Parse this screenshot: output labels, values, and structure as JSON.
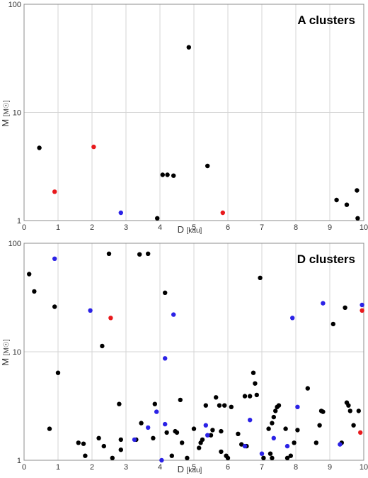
{
  "colors": {
    "black": "#000000",
    "red": "#e8191c",
    "blue": "#2b22e6",
    "grid": "#d4d4d4"
  },
  "chart_data": [
    {
      "type": "scatter",
      "title": "A clusters",
      "xlabel": "D",
      "xlabel_unit": "[kau]",
      "ylabel": "M",
      "ylabel_unit": "[M☉]",
      "xlim": [
        0,
        10
      ],
      "ylim": [
        1,
        100
      ],
      "yscale": "log",
      "grid": true,
      "x_ticks": [
        "0",
        "1",
        "2",
        "3",
        "4",
        "5",
        "6",
        "7",
        "8",
        "9",
        "10"
      ],
      "y_ticks": [
        "1",
        "10",
        "100"
      ],
      "series": [
        {
          "color": "black",
          "points": [
            [
              0.45,
              4.7
            ],
            [
              3.92,
              1.05
            ],
            [
              4.08,
              2.65
            ],
            [
              4.22,
              2.65
            ],
            [
              4.4,
              2.6
            ],
            [
              4.85,
              40
            ],
            [
              5.4,
              3.2
            ],
            [
              9.2,
              1.55
            ],
            [
              9.5,
              1.4
            ],
            [
              9.8,
              1.9
            ],
            [
              9.82,
              1.05
            ]
          ]
        },
        {
          "color": "red",
          "points": [
            [
              0.9,
              1.85
            ],
            [
              2.05,
              4.8
            ],
            [
              5.85,
              1.18
            ]
          ]
        },
        {
          "color": "blue",
          "points": [
            [
              2.85,
              1.18
            ]
          ]
        }
      ]
    },
    {
      "type": "scatter",
      "title": "D clusters",
      "xlabel": "D",
      "xlabel_unit": "[kau]",
      "ylabel": "M",
      "ylabel_unit": "[M☉]",
      "xlim": [
        0,
        10
      ],
      "ylim": [
        1,
        100
      ],
      "yscale": "log",
      "grid": true,
      "x_ticks": [
        "0",
        "1",
        "2",
        "3",
        "4",
        "5",
        "6",
        "7",
        "8",
        "9",
        "10"
      ],
      "y_ticks": [
        "1",
        "10",
        "100"
      ],
      "series": [
        {
          "color": "black",
          "points": [
            [
              0.15,
              52
            ],
            [
              0.3,
              36
            ],
            [
              0.9,
              26
            ],
            [
              1.0,
              6.4
            ],
            [
              0.75,
              1.95
            ],
            [
              1.6,
              1.45
            ],
            [
              1.75,
              1.42
            ],
            [
              1.8,
              1.1
            ],
            [
              2.2,
              1.6
            ],
            [
              2.3,
              11.3
            ],
            [
              2.35,
              1.35
            ],
            [
              2.5,
              80
            ],
            [
              2.6,
              1.05
            ],
            [
              2.8,
              3.3
            ],
            [
              2.85,
              1.25
            ],
            [
              2.85,
              1.55
            ],
            [
              3.3,
              1.55
            ],
            [
              3.4,
              79
            ],
            [
              3.45,
              2.2
            ],
            [
              3.65,
              80
            ],
            [
              3.8,
              1.6
            ],
            [
              3.85,
              3.3
            ],
            [
              4.15,
              35
            ],
            [
              4.2,
              1.8
            ],
            [
              4.35,
              1.1
            ],
            [
              4.45,
              1.85
            ],
            [
              4.5,
              1.8
            ],
            [
              4.6,
              3.6
            ],
            [
              4.65,
              1.45
            ],
            [
              4.8,
              1.05
            ],
            [
              5.0,
              1.95
            ],
            [
              5.15,
              1.3
            ],
            [
              5.2,
              1.45
            ],
            [
              5.25,
              1.55
            ],
            [
              5.35,
              3.2
            ],
            [
              5.5,
              1.7
            ],
            [
              5.55,
              1.9
            ],
            [
              5.65,
              3.8
            ],
            [
              5.75,
              3.2
            ],
            [
              5.8,
              1.2
            ],
            [
              5.8,
              1.85
            ],
            [
              5.9,
              3.2
            ],
            [
              5.95,
              1.1
            ],
            [
              6.0,
              1.05
            ],
            [
              6.1,
              3.1
            ],
            [
              6.3,
              1.75
            ],
            [
              6.4,
              1.4
            ],
            [
              6.5,
              3.9
            ],
            [
              6.55,
              1.35
            ],
            [
              6.65,
              3.9
            ],
            [
              6.75,
              6.4
            ],
            [
              6.8,
              5.1
            ],
            [
              6.85,
              4.0
            ],
            [
              6.95,
              48
            ],
            [
              7.05,
              1.05
            ],
            [
              7.2,
              1.95
            ],
            [
              7.25,
              1.15
            ],
            [
              7.3,
              2.2
            ],
            [
              7.3,
              1.05
            ],
            [
              7.35,
              2.5
            ],
            [
              7.4,
              2.85
            ],
            [
              7.45,
              3.1
            ],
            [
              7.5,
              3.2
            ],
            [
              7.7,
              1.95
            ],
            [
              7.75,
              1.05
            ],
            [
              7.85,
              1.1
            ],
            [
              7.95,
              1.45
            ],
            [
              8.05,
              1.9
            ],
            [
              8.35,
              4.6
            ],
            [
              8.6,
              1.45
            ],
            [
              8.7,
              2.1
            ],
            [
              8.75,
              2.85
            ],
            [
              8.8,
              2.8
            ],
            [
              9.1,
              18
            ],
            [
              9.35,
              1.45
            ],
            [
              9.45,
              25.5
            ],
            [
              9.5,
              3.4
            ],
            [
              9.55,
              3.2
            ],
            [
              9.6,
              2.85
            ],
            [
              9.7,
              2.1
            ],
            [
              9.85,
              2.85
            ]
          ]
        },
        {
          "color": "blue",
          "points": [
            [
              0.9,
              72
            ],
            [
              1.95,
              24
            ],
            [
              3.25,
              1.55
            ],
            [
              3.65,
              2.0
            ],
            [
              3.9,
              2.8
            ],
            [
              4.05,
              1.0
            ],
            [
              4.15,
              8.7
            ],
            [
              4.15,
              2.15
            ],
            [
              4.4,
              22
            ],
            [
              5.35,
              2.1
            ],
            [
              5.4,
              1.7
            ],
            [
              6.5,
              1.35
            ],
            [
              6.65,
              2.35
            ],
            [
              7.0,
              1.15
            ],
            [
              7.35,
              1.6
            ],
            [
              7.75,
              1.35
            ],
            [
              7.9,
              20.5
            ],
            [
              8.05,
              3.1
            ],
            [
              8.8,
              28
            ],
            [
              9.3,
              1.4
            ],
            [
              9.95,
              27
            ]
          ]
        },
        {
          "color": "red",
          "points": [
            [
              2.55,
              20.5
            ],
            [
              9.9,
              1.8
            ],
            [
              9.95,
              24
            ]
          ]
        }
      ]
    }
  ]
}
